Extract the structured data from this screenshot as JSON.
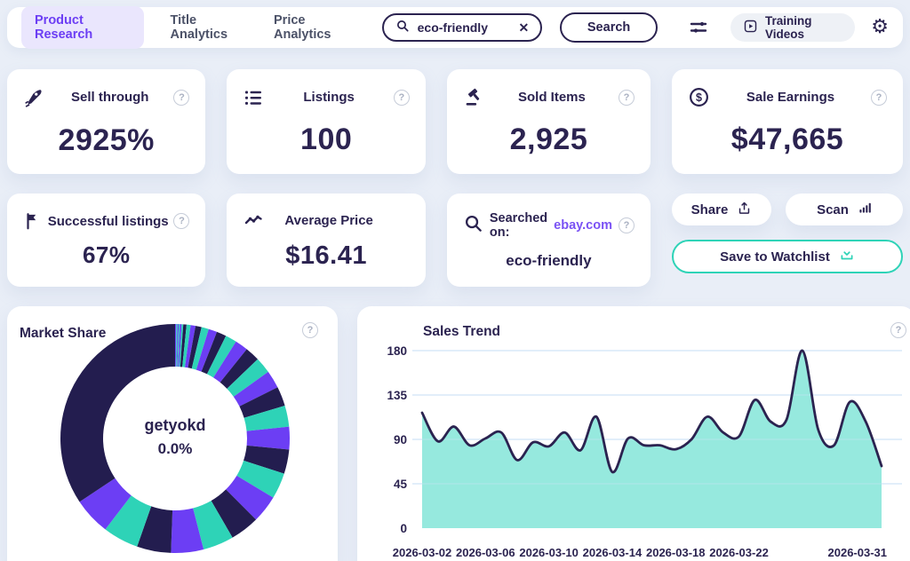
{
  "colors": {
    "accent": "#6c3ef4",
    "accent_bg": "#eae6fd",
    "navy": "#2b2350",
    "teal": "#2ed3b7",
    "page_bg": "#e9eef7"
  },
  "icons": {
    "help_glyph": "?",
    "clear_glyph": "✕",
    "gear_glyph": "⚙",
    "dollar_glyph": "$"
  },
  "header": {
    "nav": [
      {
        "label": "Product Research",
        "active": true
      },
      {
        "label": "Title Analytics",
        "active": false
      },
      {
        "label": "Price Analytics",
        "active": false
      }
    ],
    "search": {
      "value": "eco-friendly"
    },
    "search_button_label": "Search",
    "training_videos_label": "Training Videos"
  },
  "stats": [
    {
      "label": "Sell through",
      "value": "2925%"
    },
    {
      "label": "Listings",
      "value": "100"
    },
    {
      "label": "Sold Items",
      "value": "2,925"
    },
    {
      "label": "Sale Earnings",
      "value": "$47,665"
    },
    {
      "label": "Successful listings",
      "value": "67%"
    },
    {
      "label": "Average Price",
      "value": "$16.41"
    },
    {
      "label": "Searched on:",
      "site": "ebay.com",
      "value": "eco-friendly"
    }
  ],
  "actions": {
    "share_label": "Share",
    "scan_label": "Scan",
    "save_label": "Save to Watchlist"
  },
  "chart_data": [
    {
      "type": "pie",
      "title": "Market Share",
      "center_label": "getyokd",
      "center_value": "0.0%",
      "legend": "none",
      "slices": [
        {
          "value": 0.15,
          "color": "#6c3ef4"
        },
        {
          "value": 0.15,
          "color": "#2ed3b7"
        },
        {
          "value": 0.15,
          "color": "#6c3ef4"
        },
        {
          "value": 0.15,
          "color": "#2ed3b7"
        },
        {
          "value": 0.2,
          "color": "#6c3ef4"
        },
        {
          "value": 0.2,
          "color": "#2ed3b7"
        },
        {
          "value": 0.4,
          "color": "#231d4f"
        },
        {
          "value": 0.5,
          "color": "#2ed3b7"
        },
        {
          "value": 0.6,
          "color": "#6c3ef4"
        },
        {
          "value": 0.75,
          "color": "#231d4f"
        },
        {
          "value": 0.9,
          "color": "#2ed3b7"
        },
        {
          "value": 1.05,
          "color": "#6c3ef4"
        },
        {
          "value": 1.2,
          "color": "#231d4f"
        },
        {
          "value": 1.4,
          "color": "#2ed3b7"
        },
        {
          "value": 1.6,
          "color": "#6c3ef4"
        },
        {
          "value": 1.8,
          "color": "#231d4f"
        },
        {
          "value": 2.0,
          "color": "#2ed3b7"
        },
        {
          "value": 2.2,
          "color": "#6c3ef4"
        },
        {
          "value": 2.4,
          "color": "#231d4f"
        },
        {
          "value": 2.6,
          "color": "#2ed3b7"
        },
        {
          "value": 2.8,
          "color": "#6c3ef4"
        },
        {
          "value": 3.0,
          "color": "#231d4f"
        },
        {
          "value": 3.2,
          "color": "#2ed3b7"
        },
        {
          "value": 3.4,
          "color": "#6c3ef4"
        },
        {
          "value": 3.6,
          "color": "#231d4f"
        },
        {
          "value": 3.8,
          "color": "#2ed3b7"
        },
        {
          "value": 4.0,
          "color": "#6c3ef4"
        },
        {
          "value": 4.2,
          "color": "#231d4f"
        },
        {
          "value": 4.4,
          "color": "#2ed3b7"
        },
        {
          "value": 4.6,
          "color": "#6c3ef4"
        },
        {
          "value": 30,
          "color": "#231d4f"
        }
      ]
    },
    {
      "type": "area",
      "title": "Sales Trend",
      "x": [
        "2026-03-02",
        "2026-03-03",
        "2026-03-04",
        "2026-03-05",
        "2026-03-06",
        "2026-03-07",
        "2026-03-08",
        "2026-03-09",
        "2026-03-10",
        "2026-03-11",
        "2026-03-12",
        "2026-03-13",
        "2026-03-14",
        "2026-03-15",
        "2026-03-16",
        "2026-03-17",
        "2026-03-18",
        "2026-03-19",
        "2026-03-20",
        "2026-03-21",
        "2026-03-22",
        "2026-03-23",
        "2026-03-24",
        "2026-03-25",
        "2026-03-26",
        "2026-03-27",
        "2026-03-28",
        "2026-03-29",
        "2026-03-30",
        "2026-03-31"
      ],
      "values": [
        117,
        88,
        103,
        84,
        91,
        97,
        69,
        87,
        83,
        97,
        79,
        113,
        57,
        91,
        84,
        84,
        80,
        90,
        113,
        97,
        93,
        130,
        108,
        110,
        180,
        100,
        84,
        128,
        108,
        63
      ],
      "ylim": [
        0,
        180
      ],
      "yticks": [
        0,
        45,
        90,
        135,
        180
      ],
      "x_axis_labels": [
        "2026-03-02",
        "2026-03-06",
        "2026-03-10",
        "2026-03-14",
        "2026-03-18",
        "2026-03-22",
        "2026-03-31"
      ],
      "grid": true,
      "legend_position": "none",
      "line_color": "#2b2350",
      "fill_color": "#7ce4d6",
      "grid_color": "#d8e9f8"
    }
  ]
}
